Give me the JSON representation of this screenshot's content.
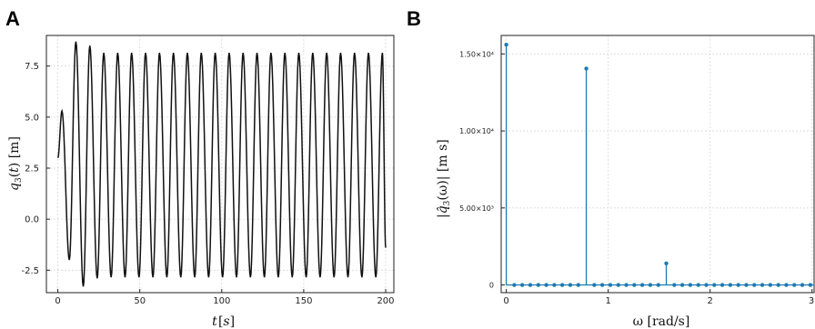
{
  "panels": {
    "a": {
      "letter": "A"
    },
    "b": {
      "letter": "B"
    }
  },
  "chart_data": [
    {
      "type": "line",
      "title": "",
      "xlabel": "t [s]",
      "ylabel": "q3(t) [m]",
      "xlim": [
        -7,
        205
      ],
      "ylim": [
        -3.6,
        9.0
      ],
      "xticks": [
        0,
        50,
        100,
        150,
        200
      ],
      "xtick_labels": [
        "0",
        "50",
        "100",
        "150",
        "200"
      ],
      "yticks": [
        -2.5,
        0.0,
        2.5,
        5.0,
        7.5
      ],
      "ytick_labels": [
        "-2.5",
        "0.0",
        "2.5",
        "5.0",
        "7.5"
      ],
      "grid": true,
      "line_color": "#111111",
      "series": [
        {
          "x": [
            0,
            2.5,
            7,
            11,
            15.5,
            19.5,
            24,
            28,
            32.5,
            36.5,
            41,
            45,
            49.5,
            53.5,
            58,
            62,
            66.5,
            70.5,
            75,
            79,
            83.5,
            87.5,
            92,
            96,
            100.5,
            104.5,
            109,
            113,
            117.5,
            121.5,
            126,
            130,
            134.5,
            138.5,
            143,
            147,
            151.5,
            155.5,
            160,
            164,
            168.5,
            172.5,
            177,
            181,
            185.5,
            189.5,
            194,
            198,
            200
          ],
          "y": [
            3.0,
            5.3,
            -2.0,
            8.7,
            -3.3,
            8.5,
            -2.9,
            8.15,
            -2.85,
            8.15,
            -2.85,
            8.15,
            -2.85,
            8.15,
            -2.85,
            8.15,
            -2.85,
            8.15,
            -2.85,
            8.15,
            -2.85,
            8.15,
            -2.85,
            8.15,
            -2.85,
            8.15,
            -2.85,
            8.15,
            -2.85,
            8.15,
            -2.85,
            8.15,
            -2.85,
            8.15,
            -2.85,
            8.15,
            -2.85,
            8.15,
            -2.85,
            8.15,
            -2.85,
            8.15,
            -2.85,
            8.15,
            -2.85,
            8.15,
            -2.85,
            8.15,
            -1.4
          ]
        }
      ]
    },
    {
      "type": "bar",
      "subtype": "stem",
      "title": "",
      "xlabel": "ω [rad/s]",
      "ylabel": "|q̂3(ω)| [m s]",
      "xlim": [
        -0.05,
        3.02
      ],
      "ylim": [
        -500,
        16200
      ],
      "xticks": [
        0,
        1,
        2,
        3
      ],
      "xtick_labels": [
        "0",
        "1",
        "2",
        "3"
      ],
      "yticks": [
        0,
        5000,
        10000,
        15000
      ],
      "ytick_labels": [
        "0",
        "5.00×10³",
        "1.00×10⁴",
        "1.50×10⁴"
      ],
      "grid": true,
      "stem_color": "#1f7ab0",
      "stem_spacing": 0.0785,
      "stem_count": 39,
      "peaks": [
        {
          "index": 0,
          "value": 15600
        },
        {
          "index": 10,
          "value": 14050
        },
        {
          "index": 20,
          "value": 1400
        }
      ]
    }
  ]
}
